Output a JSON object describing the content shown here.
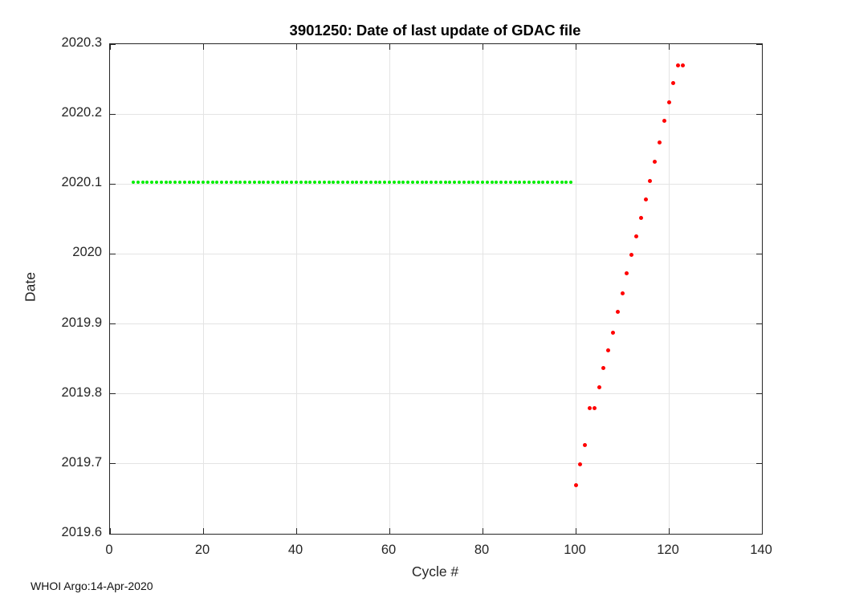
{
  "footer": "WHOI Argo:14-Apr-2020",
  "colors": {
    "axis": "#262626",
    "grid": "#e4e4e4",
    "title": "#000000",
    "background": "#ffffff",
    "series_green": "#00ee00",
    "series_red": "#ff0000"
  },
  "chart_data": {
    "type": "scatter",
    "title": "3901250: Date of last update of GDAC file",
    "xlabel": "Cycle #",
    "ylabel": "Date",
    "xlim": [
      0,
      140
    ],
    "ylim": [
      2019.6,
      2020.3
    ],
    "grid": true,
    "legend": "none",
    "box": true,
    "xticks": {
      "values": [
        0,
        20,
        40,
        60,
        80,
        100,
        120,
        140
      ],
      "labels": [
        "0",
        "20",
        "40",
        "60",
        "80",
        "100",
        "120",
        "140"
      ]
    },
    "yticks": {
      "values": [
        2019.6,
        2019.7,
        2019.8,
        2019.9,
        2020.0,
        2020.1,
        2020.2,
        2020.3
      ],
      "labels": [
        "2019.6",
        "2019.7",
        "2019.8",
        "2019.9",
        "2020",
        "2020.1",
        "2020.2",
        "2020.3"
      ]
    },
    "series": [
      {
        "key": "green",
        "color": "#00ee00",
        "marker": "filled-circle",
        "marker_size_px": 4,
        "x_range": {
          "start": 5,
          "end": 99,
          "step": 1
        },
        "y_constant": 2020.103
      },
      {
        "key": "red",
        "color": "#ff0000",
        "marker": "filled-circle",
        "marker_size_px": 5,
        "x": [
          100,
          101,
          102,
          103,
          104,
          105,
          106,
          107,
          108,
          109,
          110,
          111,
          112,
          113,
          114,
          115,
          116,
          117,
          118,
          119,
          120,
          121,
          122,
          123
        ],
        "y": [
          2019.67,
          2019.699,
          2019.727,
          2019.78,
          2019.78,
          2019.809,
          2019.837,
          2019.862,
          2019.888,
          2019.917,
          2019.944,
          2019.972,
          2019.999,
          2020.025,
          2020.051,
          2020.078,
          2020.104,
          2020.132,
          2020.16,
          2020.19,
          2020.217,
          2020.244,
          2020.27,
          2020.27
        ]
      }
    ]
  }
}
